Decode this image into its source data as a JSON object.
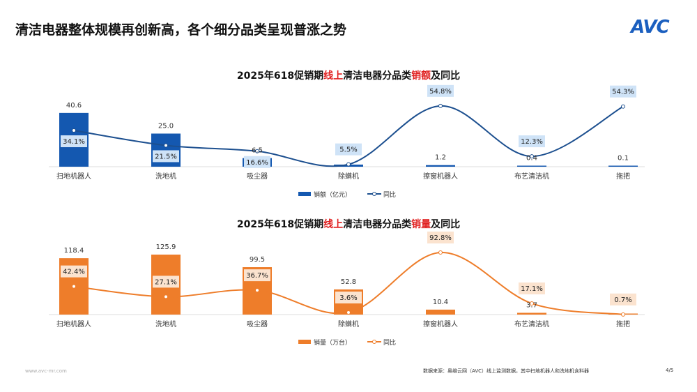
{
  "page": {
    "title": "清洁电器整体规模再创新高，各个细分品类呈现普涨之势",
    "logo": "AVC",
    "footer_left": "www.avc-mr.com",
    "footer_source": "数据来源：奥维云网（AVC）线上监测数据，其中扫地机器人和洗地机含料器",
    "page_number": "4/5"
  },
  "chart_data": [
    {
      "type": "bar+line",
      "title_parts": [
        "2025年618促销期",
        "线上",
        "清洁电器分品类",
        "销额",
        "及同比"
      ],
      "categories": [
        "扫地机器人",
        "洗地机",
        "吸尘器",
        "除螨机",
        "擦窗机器人",
        "布艺清洁机",
        "拖把"
      ],
      "series": [
        {
          "name": "销额（亿元）",
          "type": "bar",
          "values": [
            40.6,
            25.0,
            6.5,
            1.6,
            1.2,
            0.4,
            0.1
          ],
          "labels": [
            "40.6",
            "25.0",
            "6.5",
            "",
            "1.2",
            "0.4",
            "0.1"
          ]
        },
        {
          "name": "同比",
          "type": "line",
          "values": [
            34.1,
            21.5,
            16.6,
            5.5,
            54.8,
            12.3,
            54.3
          ]
        }
      ],
      "colors": {
        "bar": "#1458b0",
        "line": "#1c4f8f",
        "label_bg": "#cfe3f7",
        "highlight": "#e02020"
      },
      "legend": "bottom"
    },
    {
      "type": "bar+line",
      "title_parts": [
        "2025年618促销期",
        "线上",
        "清洁电器分品类",
        "销量",
        "及同比"
      ],
      "categories": [
        "扫地机器人",
        "洗地机",
        "吸尘器",
        "除螨机",
        "擦窗机器人",
        "布艺清洁机",
        "拖把"
      ],
      "series": [
        {
          "name": "销量（万台）",
          "type": "bar",
          "values": [
            118.4,
            125.9,
            99.5,
            52.8,
            10.4,
            3.7,
            null
          ],
          "labels": [
            "118.4",
            "125.9",
            "99.5",
            "52.8",
            "10.4",
            "3.7",
            ""
          ]
        },
        {
          "name": "同比",
          "type": "line",
          "values": [
            42.4,
            27.1,
            36.7,
            3.6,
            92.8,
            17.1,
            0.7
          ]
        }
      ],
      "colors": {
        "bar": "#ee7d2a",
        "line": "#ee7d2a",
        "label_bg": "#fbe3cf",
        "highlight": "#e02020"
      },
      "legend": "bottom"
    }
  ]
}
